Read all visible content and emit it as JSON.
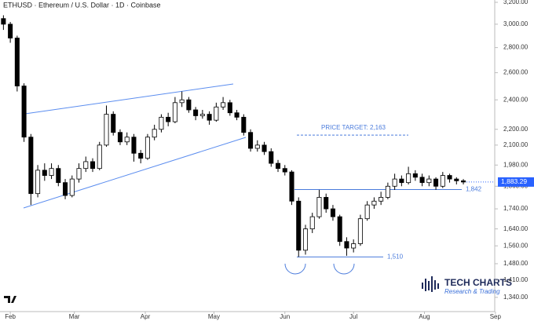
{
  "chart_data": {
    "type": "candlestick",
    "title": "ETHUSD · Ethereum / U.S. Dollar · 1D · Coinbase",
    "x": [
      -3,
      0,
      3,
      6,
      9,
      12,
      15,
      18,
      21,
      24,
      27,
      30,
      33,
      36,
      39,
      42,
      45,
      48,
      51,
      54,
      57,
      60,
      63,
      66,
      69,
      72,
      75,
      78,
      81,
      84,
      87,
      90,
      93,
      96,
      99,
      102,
      105,
      108,
      111,
      114,
      117,
      120,
      123,
      126,
      129,
      132,
      135,
      138,
      141,
      144,
      147,
      150,
      153,
      156,
      159,
      162,
      165,
      168,
      171,
      174,
      177,
      180,
      183,
      186,
      189,
      192,
      195,
      198
    ],
    "open": [
      3050,
      3000,
      2880,
      2500,
      2150,
      1820,
      1950,
      1920,
      1960,
      1880,
      1810,
      1900,
      1960,
      2000,
      1960,
      2100,
      2300,
      2180,
      2120,
      2150,
      2050,
      2020,
      2150,
      2200,
      2280,
      2250,
      2380,
      2400,
      2330,
      2290,
      2300,
      2260,
      2350,
      2380,
      2310,
      2280,
      2180,
      2080,
      2100,
      2060,
      1990,
      1960,
      1940,
      1780,
      1540,
      1640,
      1700,
      1800,
      1740,
      1700,
      1580,
      1550,
      1570,
      1690,
      1760,
      1780,
      1800,
      1860,
      1900,
      1880,
      1930,
      1910,
      1880,
      1900,
      1860,
      1920,
      1900,
      1890
    ],
    "high": [
      3080,
      3020,
      2900,
      2520,
      2170,
      1980,
      1990,
      1990,
      1980,
      1900,
      1920,
      1990,
      2030,
      2020,
      2120,
      2360,
      2320,
      2200,
      2180,
      2170,
      2070,
      2170,
      2230,
      2300,
      2310,
      2420,
      2460,
      2420,
      2350,
      2330,
      2320,
      2380,
      2420,
      2400,
      2330,
      2300,
      2200,
      2130,
      2120,
      2080,
      2010,
      1980,
      1950,
      1800,
      1660,
      1720,
      1840,
      1820,
      1760,
      1710,
      1600,
      1590,
      1710,
      1780,
      1800,
      1830,
      1880,
      1930,
      1920,
      1970,
      1950,
      1930,
      1920,
      1910,
      1940,
      1930,
      1910,
      1900
    ],
    "low": [
      2950,
      2840,
      2460,
      2120,
      1760,
      1800,
      1890,
      1900,
      1860,
      1790,
      1800,
      1880,
      1940,
      1940,
      1950,
      2090,
      2160,
      2100,
      2100,
      2000,
      1990,
      2010,
      2130,
      2180,
      2220,
      2240,
      2350,
      2310,
      2260,
      2270,
      2230,
      2250,
      2330,
      2290,
      2260,
      2160,
      2060,
      2060,
      2040,
      1970,
      1940,
      1920,
      1760,
      1510,
      1520,
      1620,
      1690,
      1720,
      1680,
      1560,
      1515,
      1530,
      1560,
      1680,
      1740,
      1760,
      1790,
      1840,
      1860,
      1870,
      1890,
      1860,
      1860,
      1840,
      1850,
      1880,
      1870,
      1870
    ],
    "close": [
      3000,
      2880,
      2500,
      2150,
      1820,
      1950,
      1920,
      1960,
      1880,
      1810,
      1900,
      1960,
      2000,
      1960,
      2100,
      2300,
      2180,
      2120,
      2150,
      2050,
      2020,
      2150,
      2200,
      2280,
      2250,
      2380,
      2400,
      2330,
      2290,
      2300,
      2260,
      2350,
      2380,
      2310,
      2280,
      2180,
      2080,
      2100,
      2060,
      1990,
      1960,
      1940,
      1780,
      1540,
      1640,
      1700,
      1800,
      1740,
      1700,
      1580,
      1550,
      1570,
      1690,
      1760,
      1780,
      1800,
      1860,
      1900,
      1880,
      1930,
      1910,
      1880,
      1900,
      1860,
      1920,
      1900,
      1890,
      1883.29
    ],
    "up_color": "#ffffff",
    "down_color": "#000000",
    "xlim": [
      -4.5,
      210
    ],
    "xticks": [
      {
        "value": 0,
        "label": "Feb"
      },
      {
        "value": 28,
        "label": "Mar"
      },
      {
        "value": 59,
        "label": "Apr"
      },
      {
        "value": 89,
        "label": "May"
      },
      {
        "value": 120,
        "label": "Jun"
      },
      {
        "value": 150,
        "label": "Jul"
      },
      {
        "value": 181,
        "label": "Aug"
      },
      {
        "value": 212,
        "label": "Sep"
      }
    ],
    "log_scale": true,
    "ylim": [
      1285,
      3222
    ],
    "yticks": [
      {
        "value": 3200,
        "label": "3,200.00"
      },
      {
        "value": 3000,
        "label": "3,000.00"
      },
      {
        "value": 2800,
        "label": "2,800.00"
      },
      {
        "value": 2600,
        "label": "2,600.00"
      },
      {
        "value": 2400,
        "label": "2,400.00"
      },
      {
        "value": 2200,
        "label": "2,200.00"
      },
      {
        "value": 2100,
        "label": "2,100.00"
      },
      {
        "value": 1980,
        "label": "1,980.00"
      },
      {
        "value": 1860,
        "label": "1,860.00"
      },
      {
        "value": 1740,
        "label": "1,740.00"
      },
      {
        "value": 1640,
        "label": "1,640.00"
      },
      {
        "value": 1560,
        "label": "1,560.00"
      },
      {
        "value": 1480,
        "label": "1,480.00"
      },
      {
        "value": 1410,
        "label": "1,410.00"
      },
      {
        "value": 1340,
        "label": "1,340.00"
      }
    ],
    "levels": [
      {
        "value": 2163,
        "label": "PRICE TARGET: 2,163",
        "dashed": true
      },
      {
        "value": 1842,
        "label": "1,842",
        "dashed": false
      },
      {
        "value": 1510,
        "label": "1,510",
        "dashed": false
      }
    ],
    "last_price": {
      "value": 1883.29,
      "label": "1,883.29"
    },
    "level_color": "#4a7bdc",
    "logo": {
      "title": "TECH CHARTS",
      "subtitle": "Research & Trading"
    }
  }
}
